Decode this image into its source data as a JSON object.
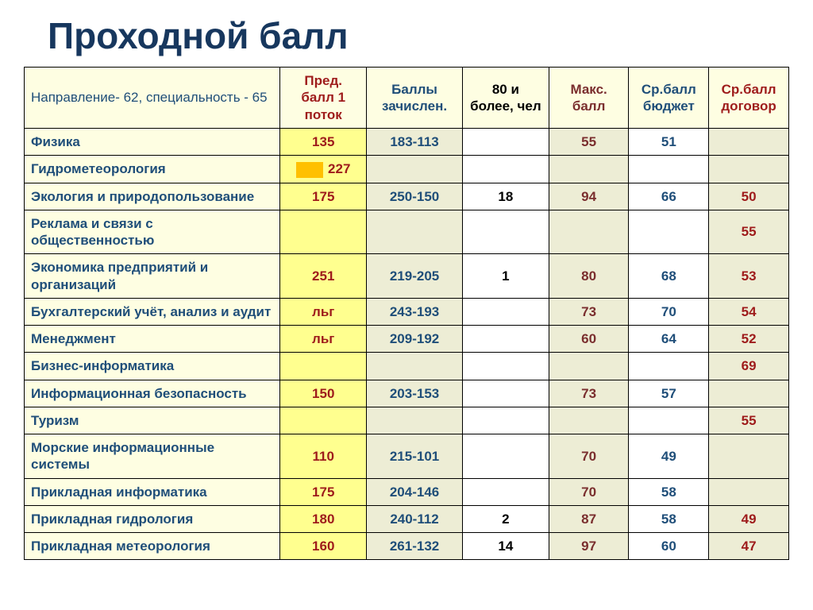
{
  "title": "Проходной балл",
  "headers": {
    "direction": "Направление- 62, специальность - 65",
    "pred": "Пред. балл 1 поток",
    "zach": "Баллы зачислен.",
    "more80": "80 и более, чел",
    "max": "Макс. балл",
    "budget": "Ср.балл бюджет",
    "contract": "Ср.балл договор"
  },
  "colors": {
    "title": "#17375e",
    "header_bg": "#fefee2",
    "rowlabel_bg": "#fefee2",
    "rowlabel_text": "#1f4e79",
    "pred_bg": "#ffff8f",
    "pred_text": "#9e1b1b",
    "zach_bg": "#ededd5",
    "zach_text": "#1f4e79",
    "more80_bg": "#ffffff",
    "more80_text": "#000000",
    "max_bg": "#ededd5",
    "max_text": "#7a2e2e",
    "budget_bg": "#ffffff",
    "budget_text": "#1f4e79",
    "contract_bg": "#ededd5",
    "contract_text": "#9e1b1b",
    "accent_orange": "#ffc000",
    "border": "#000000"
  },
  "rows": [
    {
      "name": "Физика",
      "accent": false,
      "pred": "135",
      "zach": "183-113",
      "more80": "",
      "max": "55",
      "budget": "51",
      "contract": ""
    },
    {
      "name": "Гидрометеорология",
      "accent": true,
      "pred": "227",
      "zach": "",
      "more80": "",
      "max": "",
      "budget": "",
      "contract": ""
    },
    {
      "name": "Экология и природопользование",
      "accent": false,
      "pred": "175",
      "zach": "250-150",
      "more80": "18",
      "max": "94",
      "budget": "66",
      "contract": "50"
    },
    {
      "name": "Реклама и связи с общественностью",
      "accent": false,
      "pred": "",
      "zach": "",
      "more80": "",
      "max": "",
      "budget": "",
      "contract": "55"
    },
    {
      "name": "Экономика предприятий и организаций",
      "accent": false,
      "pred": "251",
      "zach": "219-205",
      "more80": "1",
      "max": "80",
      "budget": "68",
      "contract": "53"
    },
    {
      "name": "Бухгалтерский учёт, анализ и аудит",
      "accent": false,
      "pred": "льг",
      "zach": "243-193",
      "more80": "",
      "max": "73",
      "budget": "70",
      "contract": "54"
    },
    {
      "name": "Менеджмент",
      "accent": false,
      "pred": "льг",
      "zach": "209-192",
      "more80": "",
      "max": "60",
      "budget": "64",
      "contract": "52"
    },
    {
      "name": "Бизнес-информатика",
      "accent": false,
      "pred": "",
      "zach": "",
      "more80": "",
      "max": "",
      "budget": "",
      "contract": "69"
    },
    {
      "name": "Информационная безопасность",
      "accent": false,
      "pred": "150",
      "zach": "203-153",
      "more80": "",
      "max": "73",
      "budget": "57",
      "contract": ""
    },
    {
      "name": "Туризм",
      "accent": false,
      "pred": "",
      "zach": "",
      "more80": "",
      "max": "",
      "budget": "",
      "contract": "55"
    },
    {
      "name": "Морские информационные системы",
      "accent": false,
      "pred": "110",
      "zach": "215-101",
      "more80": "",
      "max": "70",
      "budget": "49",
      "contract": ""
    },
    {
      "name": "Прикладная информатика",
      "accent": false,
      "pred": "175",
      "zach": "204-146",
      "more80": "",
      "max": "70",
      "budget": "58",
      "contract": ""
    },
    {
      "name": "Прикладная гидрология",
      "accent": false,
      "pred": "180",
      "zach": "240-112",
      "more80": "2",
      "max": "87",
      "budget": "58",
      "contract": "49"
    },
    {
      "name": "Прикладная метеорология",
      "accent": false,
      "pred": "160",
      "zach": "261-132",
      "more80": "14",
      "max": "97",
      "budget": "60",
      "contract": "47"
    }
  ]
}
